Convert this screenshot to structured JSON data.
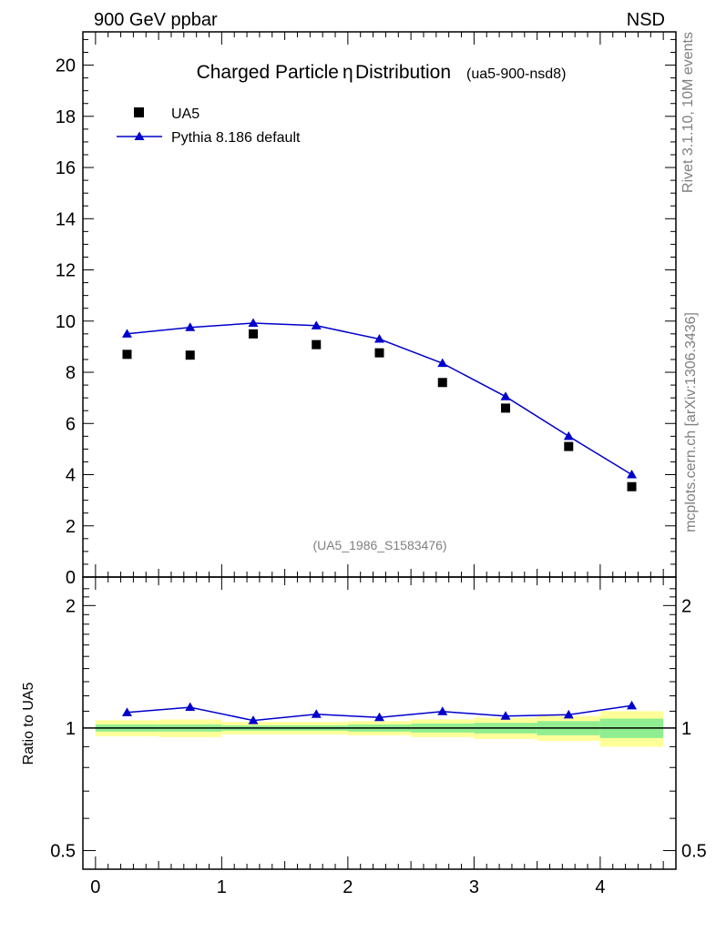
{
  "header": {
    "left": "900 GeV ppbar",
    "right": "NSD",
    "side_rivet": "Rivet 3.1.10,  10M events",
    "side_mcplots": "mcplots.cern.ch [arXiv:1306.3436]"
  },
  "chart_data": [
    {
      "type": "scatter",
      "title_main": "Charged Particle",
      "title_symbol": "η",
      "title_rest": "Distribution",
      "title_tag": "(ua5-900-nsd8)",
      "watermark": "(UA5_1986_S1583476)",
      "xlim": [
        -0.1,
        4.6
      ],
      "ylim": [
        0,
        21.3
      ],
      "yticks": [
        0,
        2,
        4,
        6,
        8,
        10,
        12,
        14,
        16,
        18,
        20
      ],
      "x": [
        0.25,
        0.75,
        1.25,
        1.75,
        2.25,
        2.75,
        3.25,
        3.75,
        4.25
      ],
      "series": [
        {
          "name": "UA5",
          "marker": "square",
          "color": "#000000",
          "values": [
            8.7,
            8.67,
            9.5,
            9.08,
            8.76,
            7.6,
            6.6,
            5.1,
            3.53
          ]
        },
        {
          "name": "Pythia 8.186 default",
          "marker": "triangle",
          "color": "#0000cc",
          "values": [
            9.5,
            9.75,
            9.92,
            9.82,
            9.3,
            8.35,
            7.05,
            5.5,
            4.0
          ]
        }
      ]
    },
    {
      "type": "line",
      "ylabel": "Ratio to UA5",
      "scale": "log",
      "xlim": [
        -0.1,
        4.6
      ],
      "ylim": [
        0.45,
        2.35
      ],
      "yticks": [
        0.5,
        1,
        2
      ],
      "xticks": [
        0,
        1,
        2,
        3,
        4
      ],
      "bins": [
        [
          0,
          0.5
        ],
        [
          0.5,
          1.0
        ],
        [
          1.0,
          1.5
        ],
        [
          1.5,
          2.0
        ],
        [
          2.0,
          2.5
        ],
        [
          2.5,
          3.0
        ],
        [
          3.0,
          3.5
        ],
        [
          3.5,
          4.0
        ],
        [
          4.0,
          4.5
        ]
      ],
      "band_total": [
        0.045,
        0.05,
        0.035,
        0.035,
        0.04,
        0.05,
        0.06,
        0.07,
        0.1
      ],
      "band_stat": [
        0.02,
        0.02,
        0.015,
        0.015,
        0.02,
        0.025,
        0.03,
        0.04,
        0.055
      ],
      "band_colors": {
        "total": "#ffff99",
        "stat": "#90ee90"
      },
      "ratio": [
        1.092,
        1.125,
        1.044,
        1.081,
        1.062,
        1.098,
        1.07,
        1.078,
        1.135
      ]
    }
  ]
}
